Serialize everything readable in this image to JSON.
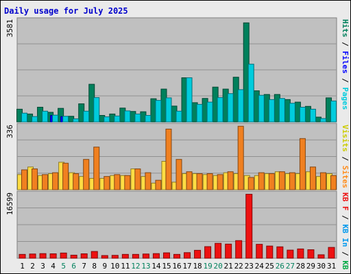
{
  "chart_data": {
    "type": "bar",
    "title": "Daily usage for July 2025",
    "categories": [
      "1",
      "2",
      "3",
      "4",
      "5",
      "6",
      "7",
      "8",
      "9",
      "10",
      "11",
      "12",
      "13",
      "14",
      "15",
      "16",
      "17",
      "18",
      "19",
      "20",
      "21",
      "22",
      "23",
      "24",
      "25",
      "26",
      "27",
      "28",
      "29",
      "30",
      "31"
    ],
    "weekend_days": [
      "5",
      "6",
      "12",
      "13",
      "19",
      "20",
      "26",
      "27"
    ],
    "panels": [
      {
        "name": "hits",
        "ymax_label": "3581",
        "ymax": 3581,
        "right_label": [
          {
            "text": "Hits",
            "color": "#00805c"
          },
          {
            "text": " / ",
            "color": "#000000"
          },
          {
            "text": "Files",
            "color": "#0000ff"
          },
          {
            "text": " / ",
            "color": "#000000"
          },
          {
            "text": "Pages",
            "color": "#00ccdd"
          }
        ],
        "series": [
          {
            "name": "Hits",
            "color": "#00805c",
            "values": [
              450,
              280,
              520,
              340,
              480,
              200,
              640,
              1330,
              230,
              280,
              490,
              370,
              360,
              820,
              1160,
              560,
              1560,
              680,
              830,
              1230,
              1160,
              1580,
              3500,
              1100,
              970,
              970,
              790,
              700,
              550,
              170,
              850
            ]
          },
          {
            "name": "Files",
            "color": "#0000ff",
            "values": [
              0,
              0,
              0,
              230,
              190,
              0,
              0,
              0,
              0,
              0,
              0,
              0,
              0,
              0,
              0,
              0,
              0,
              0,
              0,
              0,
              0,
              0,
              0,
              0,
              0,
              0,
              0,
              0,
              0,
              0,
              0
            ]
          },
          {
            "name": "Pages",
            "color": "#00ccdd",
            "values": [
              310,
              190,
              380,
              240,
              200,
              110,
              380,
              860,
              180,
              210,
              390,
              280,
              230,
              760,
              850,
              380,
              1560,
              620,
              700,
              860,
              1000,
              1140,
              2040,
              940,
              790,
              830,
              660,
              520,
              450,
              120,
              740
            ]
          }
        ]
      },
      {
        "name": "visits",
        "ymax_label": "336",
        "ymax": 336,
        "right_label": [
          {
            "text": "Visits",
            "color": "#cccc00"
          },
          {
            "text": " / ",
            "color": "#000000"
          },
          {
            "text": "Sites",
            "color": "#ff8c1a"
          }
        ],
        "series": [
          {
            "name": "Visits",
            "color": "#ffdd44",
            "values": [
              80,
              120,
              75,
              85,
              145,
              90,
              70,
              60,
              60,
              75,
              75,
              110,
              70,
              35,
              150,
              40,
              85,
              85,
              80,
              75,
              90,
              85,
              75,
              75,
              85,
              95,
              85,
              85,
              95,
              70,
              85
            ]
          },
          {
            "name": "Sites",
            "color": "#f08020",
            "values": [
              105,
              110,
              80,
              90,
              140,
              85,
              160,
              225,
              70,
              80,
              75,
              110,
              90,
              50,
              320,
              160,
              95,
              85,
              85,
              80,
              95,
              335,
              65,
              90,
              85,
              95,
              90,
              270,
              120,
              90,
              75
            ]
          }
        ]
      },
      {
        "name": "kbytes",
        "ymax_label": "16599",
        "ymax": 16599,
        "right_label": [
          {
            "text": "KB F",
            "color": "#ee1111"
          },
          {
            "text": " / ",
            "color": "#000000"
          },
          {
            "text": "KB In",
            "color": "#0099ee"
          },
          {
            "text": " / ",
            "color": "#000000"
          },
          {
            "text": "KB Out",
            "color": "#00aa44"
          }
        ],
        "series": [
          {
            "name": "KB F",
            "color": "#ee1111",
            "values": [
              1000,
              1100,
              1200,
              1150,
              1350,
              800,
              1150,
              1750,
              700,
              750,
              1000,
              1000,
              1100,
              1200,
              1400,
              1000,
              1450,
              2050,
              3000,
              3850,
              3650,
              4550,
              16500,
              3600,
              3150,
              2950,
              2100,
              2400,
              2200,
              900,
              2800
            ]
          }
        ]
      }
    ]
  }
}
